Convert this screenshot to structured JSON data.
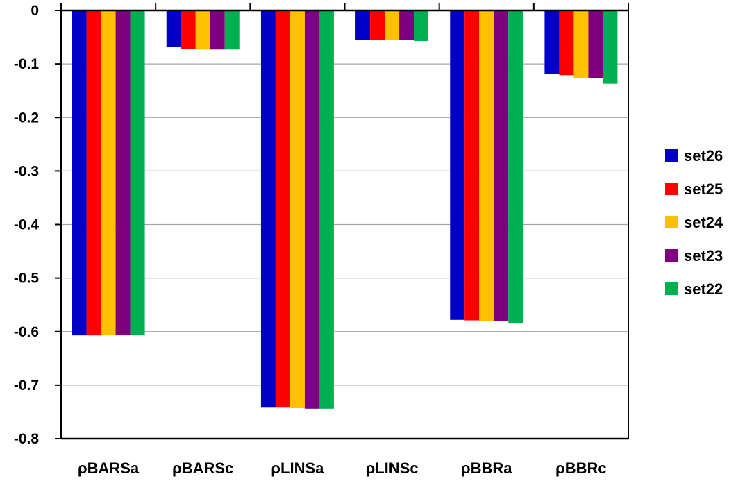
{
  "chart_data": {
    "type": "bar",
    "title": "",
    "xlabel": "",
    "ylabel": "",
    "ylim": [
      -0.8,
      0
    ],
    "yticks": [
      "0",
      "-0.1",
      "-0.2",
      "-0.3",
      "-0.4",
      "-0.5",
      "-0.6",
      "-0.7",
      "-0.8"
    ],
    "ytick_values": [
      0,
      -0.1,
      -0.2,
      -0.3,
      -0.4,
      -0.5,
      -0.6,
      -0.7,
      -0.8
    ],
    "grid": true,
    "legend_position": "right",
    "categories": [
      "ρBARSa",
      "ρBARSc",
      "ρLINSa",
      "ρLINSc",
      "ρBBRa",
      "ρBBRc"
    ],
    "series": [
      {
        "name": "set26",
        "color": "#0000c8",
        "values": [
          -0.607,
          -0.068,
          -0.742,
          -0.055,
          -0.578,
          -0.119
        ]
      },
      {
        "name": "set25",
        "color": "#ff0000",
        "values": [
          -0.607,
          -0.072,
          -0.742,
          -0.055,
          -0.579,
          -0.121
        ]
      },
      {
        "name": "set24",
        "color": "#ffc000",
        "values": [
          -0.607,
          -0.073,
          -0.743,
          -0.055,
          -0.58,
          -0.127
        ]
      },
      {
        "name": "set23",
        "color": "#7f007f",
        "values": [
          -0.607,
          -0.073,
          -0.744,
          -0.055,
          -0.58,
          -0.126
        ]
      },
      {
        "name": "set22",
        "color": "#00b050",
        "values": [
          -0.607,
          -0.073,
          -0.744,
          -0.057,
          -0.584,
          -0.137
        ]
      }
    ]
  }
}
